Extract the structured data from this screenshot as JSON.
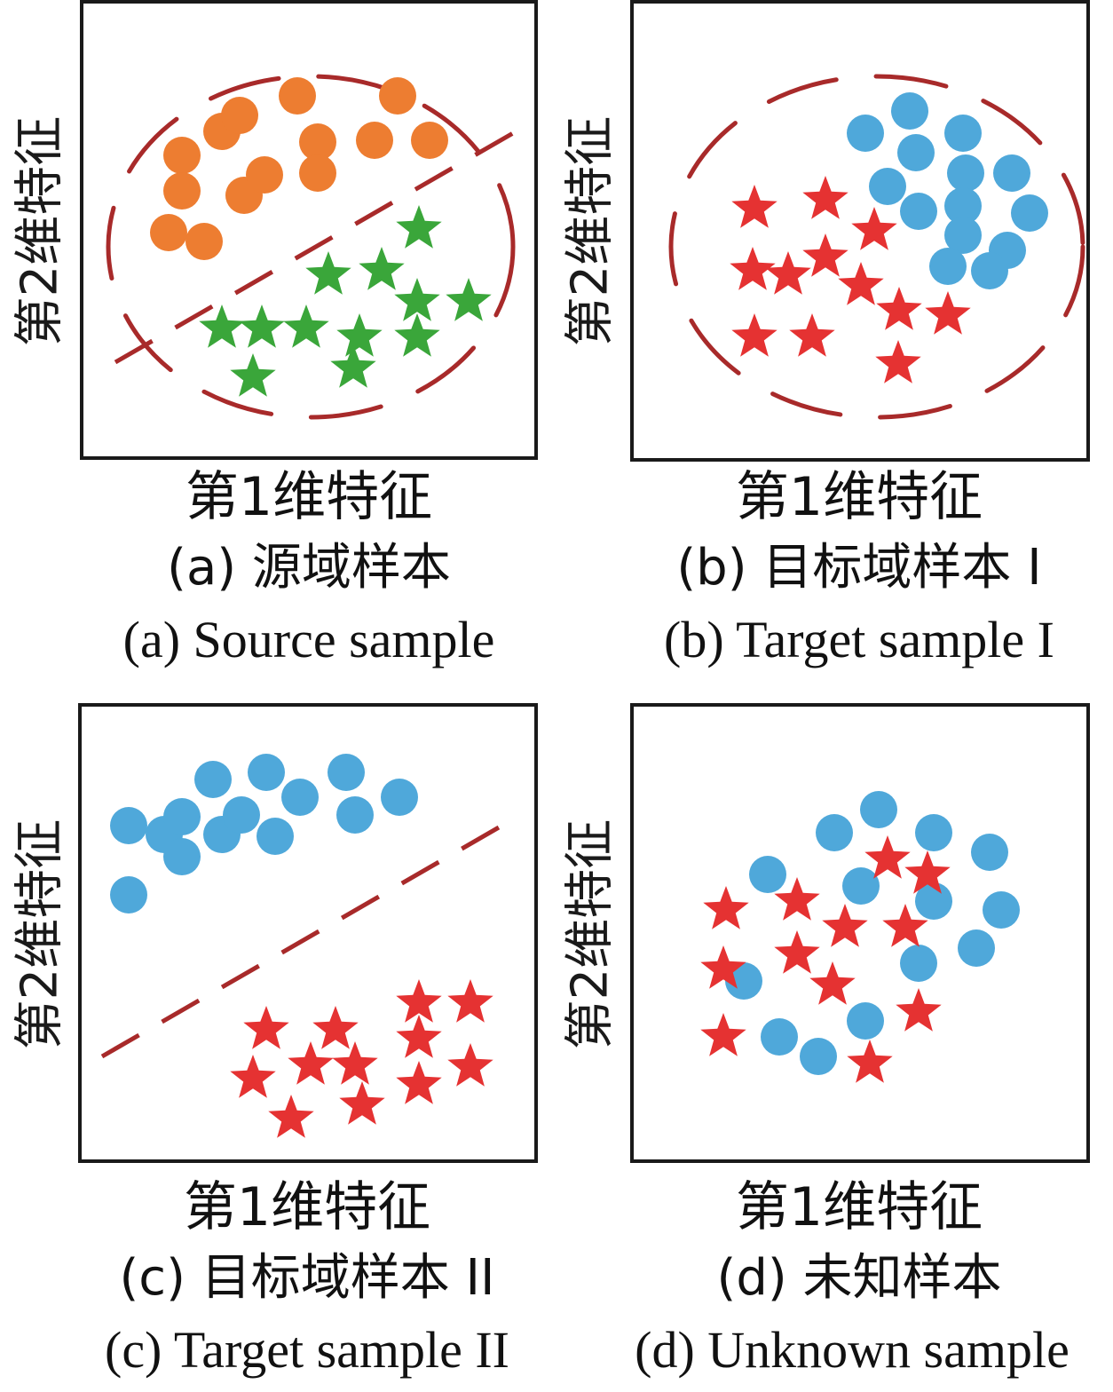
{
  "colors": {
    "orange": "#ED7D31",
    "green": "#3AA63A",
    "blue": "#4FA8DA",
    "red": "#E53232",
    "boundary": "#A82A2A",
    "frame": "#1a1a1a"
  },
  "panels": [
    {
      "id": "a",
      "ylabel": "第2维特征",
      "xlabel": "第1维特征",
      "caption_cn": "(a)  源域样本",
      "caption_en": "(a)  Source sample",
      "circles_color": "orange",
      "stars_color": "green",
      "circles": [
        [
          205,
          175
        ],
        [
          250,
          148
        ],
        [
          270,
          130
        ],
        [
          335,
          108
        ],
        [
          448,
          108
        ],
        [
          205,
          215
        ],
        [
          190,
          262
        ],
        [
          230,
          272
        ],
        [
          275,
          220
        ],
        [
          298,
          197
        ],
        [
          358,
          160
        ],
        [
          358,
          195
        ],
        [
          422,
          158
        ],
        [
          484,
          158
        ]
      ],
      "stars": [
        [
          472,
          258
        ],
        [
          370,
          310
        ],
        [
          430,
          305
        ],
        [
          470,
          340
        ],
        [
          528,
          340
        ],
        [
          250,
          370
        ],
        [
          295,
          370
        ],
        [
          345,
          370
        ],
        [
          405,
          380
        ],
        [
          470,
          380
        ],
        [
          398,
          415
        ],
        [
          285,
          425
        ]
      ],
      "dashed_line": [
        [
          130,
          408
        ],
        [
          578,
          150
        ]
      ],
      "ellipse": [
        350,
        278,
        228,
        192
      ]
    },
    {
      "id": "b",
      "ylabel": "第2维特征",
      "xlabel": "第1维特征",
      "caption_cn": "(b)  目标域样本 I",
      "caption_en": "(b)  Target sample I",
      "circles_color": "blue",
      "stars_color": "red",
      "circles": [
        [
          1025,
          125
        ],
        [
          975,
          150
        ],
        [
          1085,
          150
        ],
        [
          1032,
          172
        ],
        [
          1088,
          195
        ],
        [
          1140,
          195
        ],
        [
          1000,
          210
        ],
        [
          1035,
          238
        ],
        [
          1085,
          232
        ],
        [
          1160,
          240
        ],
        [
          1085,
          265
        ],
        [
          1135,
          282
        ],
        [
          1068,
          300
        ],
        [
          1115,
          305
        ]
      ],
      "stars": [
        [
          850,
          235
        ],
        [
          930,
          225
        ],
        [
          985,
          260
        ],
        [
          930,
          290
        ],
        [
          848,
          305
        ],
        [
          888,
          310
        ],
        [
          970,
          322
        ],
        [
          1013,
          350
        ],
        [
          1068,
          355
        ],
        [
          850,
          380
        ],
        [
          915,
          380
        ],
        [
          1012,
          410
        ]
      ],
      "dashed_line": null,
      "ellipse": [
        988,
        278,
        232,
        192
      ]
    },
    {
      "id": "c",
      "ylabel": "第2维特征",
      "xlabel": "第1维特征",
      "caption_cn": "(c)  目标域样本 II",
      "caption_en": "(c)  Target sample II",
      "circles_color": "blue",
      "stars_color": "red",
      "circles": [
        [
          240,
          878
        ],
        [
          300,
          870
        ],
        [
          390,
          870
        ],
        [
          338,
          898
        ],
        [
          450,
          898
        ],
        [
          145,
          930
        ],
        [
          185,
          940
        ],
        [
          205,
          920
        ],
        [
          250,
          940
        ],
        [
          272,
          918
        ],
        [
          310,
          942
        ],
        [
          400,
          918
        ],
        [
          205,
          965
        ],
        [
          145,
          1008
        ]
      ],
      "stars": [
        [
          472,
          1130
        ],
        [
          530,
          1130
        ],
        [
          300,
          1160
        ],
        [
          378,
          1160
        ],
        [
          472,
          1170
        ],
        [
          350,
          1200
        ],
        [
          400,
          1200
        ],
        [
          285,
          1215
        ],
        [
          530,
          1202
        ],
        [
          472,
          1222
        ],
        [
          408,
          1245
        ],
        [
          328,
          1260
        ]
      ],
      "dashed_line": [
        [
          115,
          1190
        ],
        [
          562,
          932
        ]
      ],
      "ellipse": null
    },
    {
      "id": "d",
      "ylabel": "第2维特征",
      "xlabel": "第1维特征",
      "caption_cn": "(d)  未知样本",
      "caption_en": "(d)  Unknown sample",
      "circles_color": "blue",
      "stars_color": "red",
      "circles": [
        [
          990,
          912
        ],
        [
          940,
          938
        ],
        [
          1052,
          938
        ],
        [
          1115,
          960
        ],
        [
          865,
          985
        ],
        [
          970,
          998
        ],
        [
          1052,
          1015
        ],
        [
          1128,
          1025
        ],
        [
          1035,
          1085
        ],
        [
          1100,
          1068
        ],
        [
          838,
          1105
        ],
        [
          975,
          1150
        ],
        [
          878,
          1168
        ],
        [
          922,
          1190
        ]
      ],
      "stars": [
        [
          1000,
          968
        ],
        [
          1045,
          985
        ],
        [
          818,
          1025
        ],
        [
          898,
          1015
        ],
        [
          952,
          1045
        ],
        [
          1020,
          1045
        ],
        [
          898,
          1075
        ],
        [
          815,
          1092
        ],
        [
          938,
          1110
        ],
        [
          1035,
          1140
        ],
        [
          815,
          1168
        ],
        [
          980,
          1198
        ]
      ],
      "dashed_line": null,
      "ellipse": null
    }
  ]
}
